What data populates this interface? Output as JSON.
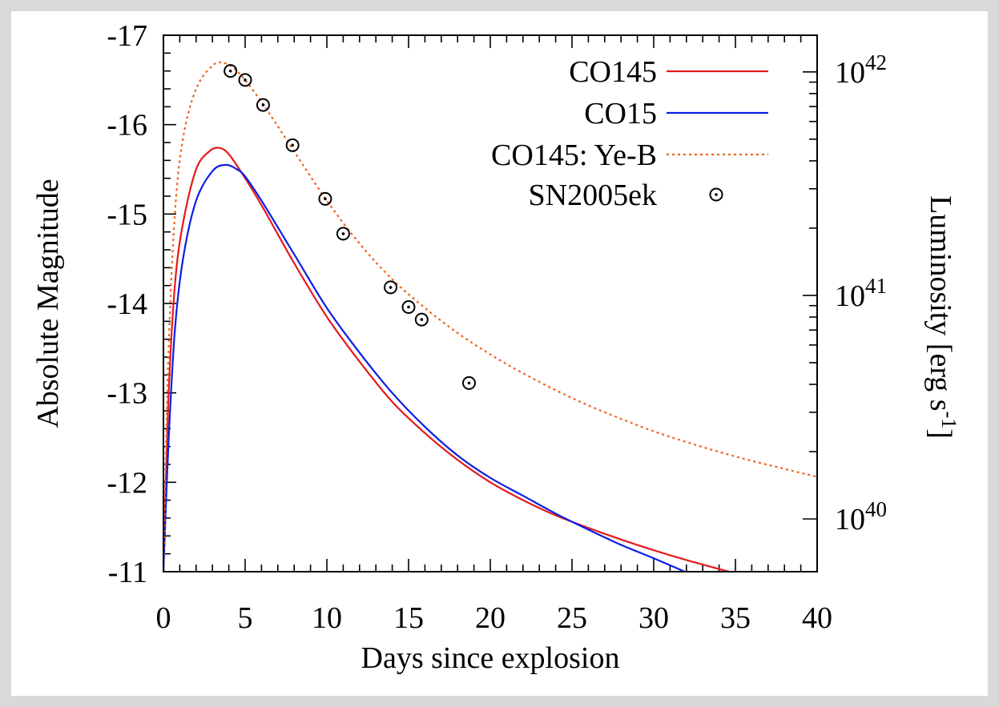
{
  "chart_data": {
    "type": "line",
    "xlabel": "Days since explosion",
    "ylabel": "Absolute Magnitude",
    "y2label": "Luminosity [erg s",
    "y2label_sup": "-1",
    "y2label_end": "]",
    "xlim": [
      0,
      40
    ],
    "ylim": [
      -11,
      -17
    ],
    "x_ticks": [
      "0",
      "5",
      "10",
      "15",
      "20",
      "25",
      "30",
      "35",
      "40"
    ],
    "y_ticks": [
      "-11",
      "-12",
      "-13",
      "-14",
      "-15",
      "-16",
      "-17"
    ],
    "y2_scale": "log",
    "y2_ticks": [
      {
        "base": "10",
        "exp": "40",
        "value": 1e+40
      },
      {
        "base": "10",
        "exp": "41",
        "value": 1e+41
      },
      {
        "base": "10",
        "exp": "42",
        "value": 1e+42
      }
    ],
    "legend_position": "top-right",
    "series": [
      {
        "name": "CO145",
        "color": "#e41a1c",
        "style": "solid",
        "x": [
          0,
          0.3,
          0.7,
          1.2,
          2,
          2.8,
          3.4,
          4,
          5,
          6,
          8,
          10,
          12,
          14,
          16,
          18,
          20,
          22,
          24,
          26,
          28,
          30,
          32,
          34,
          34.6
        ],
        "y": [
          -11,
          -12.9,
          -14.2,
          -14.9,
          -15.5,
          -15.7,
          -15.74,
          -15.67,
          -15.4,
          -15.1,
          -14.45,
          -13.85,
          -13.35,
          -12.9,
          -12.55,
          -12.25,
          -12.0,
          -11.8,
          -11.63,
          -11.49,
          -11.36,
          -11.24,
          -11.13,
          -11.03,
          -11.0
        ]
      },
      {
        "name": "CO15",
        "color": "#0a1fe6",
        "style": "solid",
        "x": [
          0,
          0.3,
          0.7,
          1.2,
          2,
          3,
          3.8,
          4.5,
          5,
          6,
          8,
          10,
          12,
          14,
          16,
          18,
          20,
          22,
          24,
          26,
          28,
          30,
          31.9
        ],
        "y": [
          -11,
          -12.4,
          -13.7,
          -14.5,
          -15.15,
          -15.48,
          -15.55,
          -15.5,
          -15.42,
          -15.15,
          -14.55,
          -13.95,
          -13.45,
          -13.0,
          -12.62,
          -12.3,
          -12.05,
          -11.85,
          -11.65,
          -11.47,
          -11.3,
          -11.15,
          -11.0
        ]
      },
      {
        "name": "CO145: Ye-B",
        "color": "#f4611e",
        "style": "dotted",
        "x": [
          0,
          0.3,
          0.7,
          1.2,
          2,
          3,
          3.7,
          4.5,
          5.5,
          6.5,
          8,
          10,
          12,
          14,
          16,
          18,
          20,
          22,
          24,
          26,
          28,
          30,
          32,
          34,
          36,
          38,
          40
        ],
        "y": [
          -11,
          -13.4,
          -15.0,
          -15.85,
          -16.4,
          -16.66,
          -16.69,
          -16.6,
          -16.38,
          -16.12,
          -15.7,
          -15.15,
          -14.67,
          -14.27,
          -13.95,
          -13.67,
          -13.43,
          -13.22,
          -13.03,
          -12.86,
          -12.71,
          -12.57,
          -12.45,
          -12.34,
          -12.24,
          -12.15,
          -12.06
        ]
      },
      {
        "name": "SN2005ek",
        "color": "#000000",
        "style": "markers",
        "x": [
          4.1,
          5.0,
          6.1,
          7.9,
          9.9,
          11.0,
          13.9,
          15.0,
          15.8,
          18.7
        ],
        "y": [
          -16.6,
          -16.5,
          -16.22,
          -15.77,
          -15.17,
          -14.78,
          -14.18,
          -13.96,
          -13.82,
          -13.11
        ]
      }
    ]
  }
}
